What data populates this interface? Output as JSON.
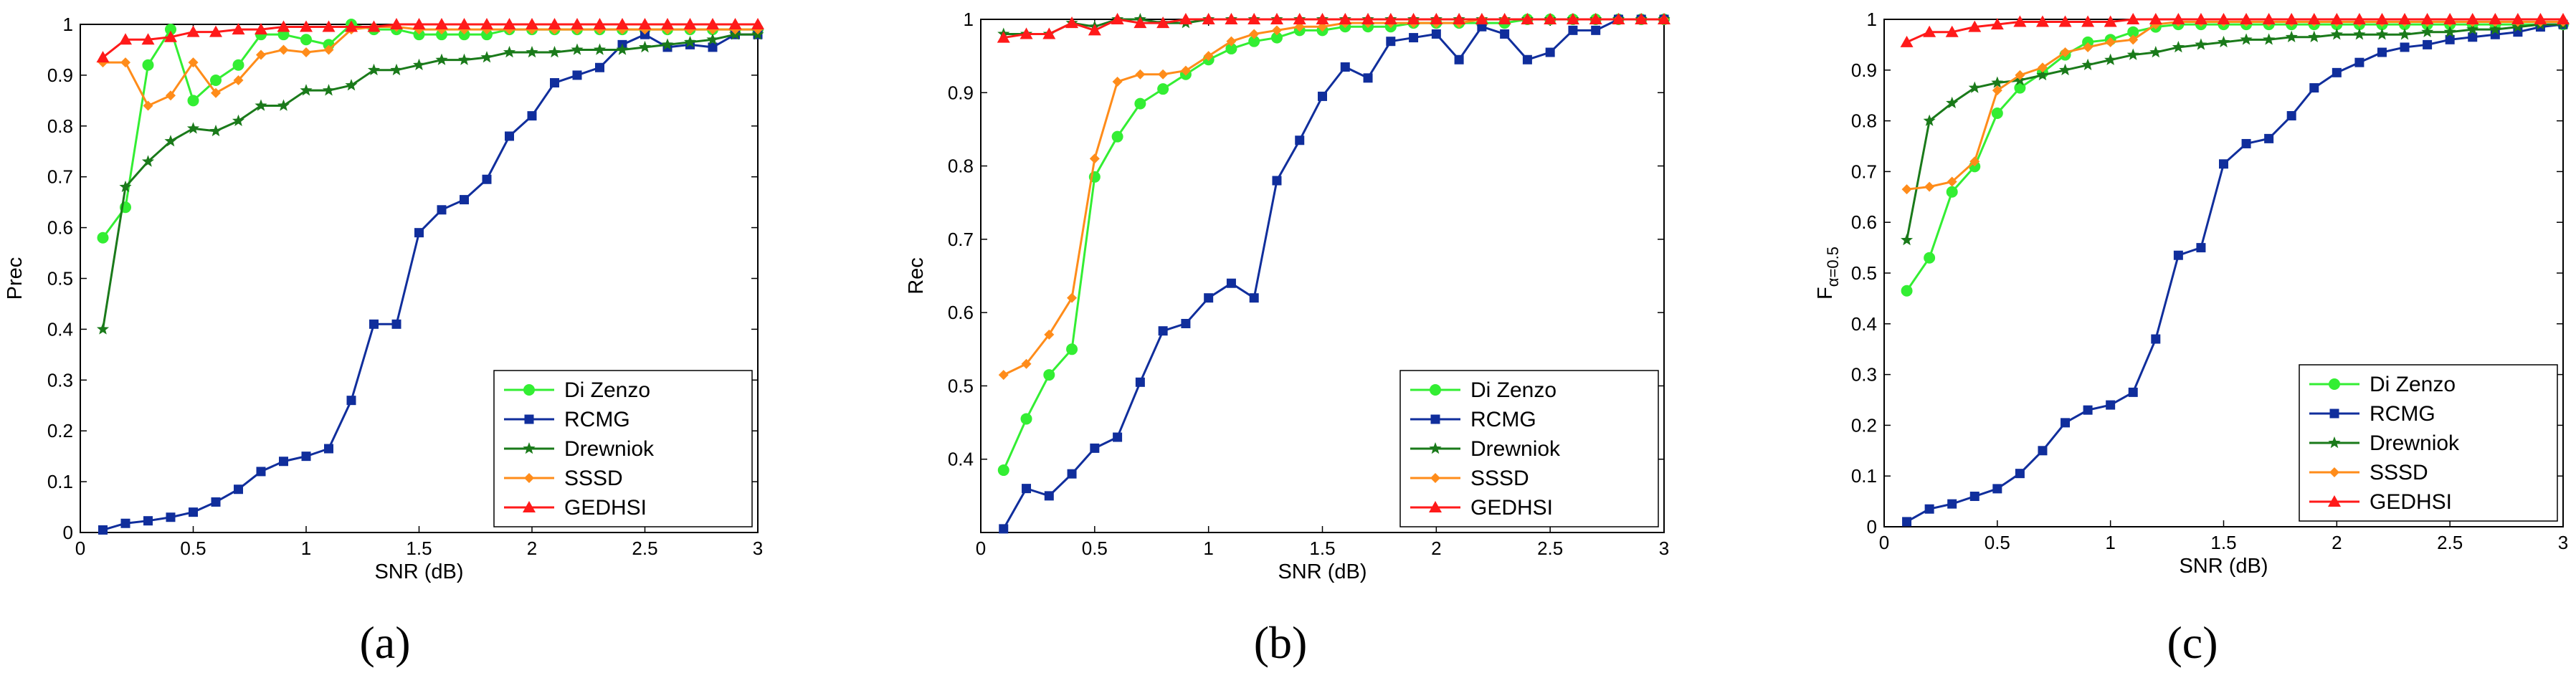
{
  "figure": {
    "panel_labels": [
      "(a)",
      "(b)",
      "(c)"
    ]
  },
  "chart_data": [
    {
      "type": "line",
      "panel": "(a)",
      "xlabel": "SNR (dB)",
      "ylabel": "Prec",
      "ylabel_sub": "",
      "xlim": [
        0,
        3
      ],
      "ylim": [
        0,
        1
      ],
      "xticks": [
        0,
        0.5,
        1,
        1.5,
        2,
        2.5,
        3
      ],
      "xtick_labels": [
        "0",
        "0.5",
        "1",
        "1.5",
        "2",
        "2.5",
        "3"
      ],
      "yticks": [
        0,
        0.1,
        0.2,
        0.3,
        0.4,
        0.5,
        0.6,
        0.7,
        0.8,
        0.9,
        1
      ],
      "ytick_labels": [
        "0",
        "0.1",
        "0.2",
        "0.3",
        "0.4",
        "0.5",
        "0.6",
        "0.7",
        "0.8",
        "0.9",
        "1"
      ],
      "grid": false,
      "legend_loc": "bottom-right",
      "x": [
        0.1,
        0.2,
        0.3,
        0.4,
        0.5,
        0.6,
        0.7,
        0.8,
        0.9,
        1.0,
        1.1,
        1.2,
        1.3,
        1.4,
        1.5,
        1.6,
        1.7,
        1.8,
        1.9,
        2.0,
        2.1,
        2.2,
        2.3,
        2.4,
        2.5,
        2.6,
        2.7,
        2.8,
        2.9,
        3.0
      ],
      "series": [
        {
          "name": "Di Zenzo",
          "color": "#33ee33",
          "marker": "circle",
          "values": [
            0.58,
            0.64,
            0.92,
            0.99,
            0.85,
            0.89,
            0.92,
            0.98,
            0.98,
            0.97,
            0.96,
            1.0,
            0.99,
            0.99,
            0.98,
            0.98,
            0.98,
            0.98,
            0.99,
            0.99,
            0.99,
            0.99,
            0.99,
            0.99,
            0.99,
            0.99,
            0.99,
            0.99,
            0.99,
            0.99
          ]
        },
        {
          "name": "RCMG",
          "color": "#102e9c",
          "marker": "square",
          "values": [
            0.005,
            0.018,
            0.023,
            0.03,
            0.04,
            0.06,
            0.085,
            0.12,
            0.14,
            0.15,
            0.165,
            0.26,
            0.41,
            0.41,
            0.59,
            0.635,
            0.655,
            0.695,
            0.78,
            0.82,
            0.885,
            0.9,
            0.915,
            0.96,
            0.98,
            0.955,
            0.96,
            0.955,
            0.98,
            0.98
          ]
        },
        {
          "name": "Drewniok",
          "color": "#1a7a1a",
          "marker": "star",
          "values": [
            0.4,
            0.68,
            0.73,
            0.77,
            0.795,
            0.79,
            0.81,
            0.84,
            0.84,
            0.87,
            0.87,
            0.88,
            0.91,
            0.91,
            0.92,
            0.93,
            0.93,
            0.935,
            0.945,
            0.945,
            0.945,
            0.95,
            0.95,
            0.95,
            0.955,
            0.96,
            0.965,
            0.97,
            0.98,
            0.98
          ]
        },
        {
          "name": "SSSD",
          "color": "#ff8c1a",
          "marker": "diamond",
          "values": [
            0.925,
            0.925,
            0.84,
            0.86,
            0.925,
            0.865,
            0.89,
            0.94,
            0.95,
            0.945,
            0.95,
            0.99,
            0.995,
            0.995,
            0.99,
            0.99,
            0.99,
            0.99,
            0.99,
            0.99,
            0.99,
            0.99,
            0.99,
            0.99,
            0.99,
            0.99,
            0.99,
            0.99,
            0.99,
            0.99
          ]
        },
        {
          "name": "GEDHSI",
          "color": "#ff1a1a",
          "marker": "triangle",
          "values": [
            0.935,
            0.97,
            0.97,
            0.975,
            0.985,
            0.985,
            0.99,
            0.99,
            0.995,
            0.995,
            0.995,
            0.995,
            0.995,
            1.0,
            1.0,
            1.0,
            1.0,
            1.0,
            1.0,
            1.0,
            1.0,
            1.0,
            1.0,
            1.0,
            1.0,
            1.0,
            1.0,
            1.0,
            1.0,
            1.0
          ]
        }
      ]
    },
    {
      "type": "line",
      "panel": "(b)",
      "xlabel": "SNR (dB)",
      "ylabel": "Rec",
      "ylabel_sub": "",
      "xlim": [
        0,
        3
      ],
      "ylim": [
        0.3,
        1
      ],
      "xticks": [
        0,
        0.5,
        1,
        1.5,
        2,
        2.5,
        3
      ],
      "xtick_labels": [
        "0",
        "0.5",
        "1",
        "1.5",
        "2",
        "2.5",
        "3"
      ],
      "yticks": [
        0.4,
        0.5,
        0.6,
        0.7,
        0.8,
        0.9,
        1
      ],
      "ytick_labels": [
        "0.4",
        "0.5",
        "0.6",
        "0.7",
        "0.8",
        "0.9",
        "1"
      ],
      "grid": false,
      "legend_loc": "bottom-right",
      "x": [
        0.1,
        0.2,
        0.3,
        0.4,
        0.5,
        0.6,
        0.7,
        0.8,
        0.9,
        1.0,
        1.1,
        1.2,
        1.3,
        1.4,
        1.5,
        1.6,
        1.7,
        1.8,
        1.9,
        2.0,
        2.1,
        2.2,
        2.3,
        2.4,
        2.5,
        2.6,
        2.7,
        2.8,
        2.9,
        3.0
      ],
      "series": [
        {
          "name": "Di Zenzo",
          "color": "#33ee33",
          "marker": "circle",
          "values": [
            0.385,
            0.455,
            0.515,
            0.55,
            0.785,
            0.84,
            0.885,
            0.905,
            0.925,
            0.945,
            0.96,
            0.97,
            0.975,
            0.985,
            0.985,
            0.99,
            0.99,
            0.99,
            0.995,
            0.995,
            0.995,
            0.995,
            0.995,
            1.0,
            1.0,
            1.0,
            1.0,
            1.0,
            1.0,
            1.0
          ]
        },
        {
          "name": "RCMG",
          "color": "#102e9c",
          "marker": "square",
          "values": [
            0.305,
            0.36,
            0.35,
            0.38,
            0.415,
            0.43,
            0.505,
            0.575,
            0.585,
            0.62,
            0.64,
            0.62,
            0.78,
            0.835,
            0.895,
            0.935,
            0.92,
            0.97,
            0.975,
            0.98,
            0.945,
            0.99,
            0.98,
            0.945,
            0.955,
            0.985,
            0.985,
            1.0,
            1.0,
            1.0
          ]
        },
        {
          "name": "Drewniok",
          "color": "#1a7a1a",
          "marker": "star",
          "values": [
            0.98,
            0.98,
            0.98,
            0.995,
            0.99,
            1.0,
            1.0,
            0.995,
            0.995,
            1.0,
            1.0,
            1.0,
            1.0,
            1.0,
            1.0,
            1.0,
            1.0,
            1.0,
            1.0,
            1.0,
            1.0,
            1.0,
            1.0,
            1.0,
            1.0,
            1.0,
            1.0,
            1.0,
            1.0,
            1.0
          ]
        },
        {
          "name": "SSSD",
          "color": "#ff8c1a",
          "marker": "diamond",
          "values": [
            0.515,
            0.53,
            0.57,
            0.62,
            0.81,
            0.915,
            0.925,
            0.925,
            0.93,
            0.95,
            0.97,
            0.98,
            0.985,
            0.99,
            0.99,
            0.995,
            0.995,
            0.995,
            0.995,
            0.995,
            0.995,
            1.0,
            1.0,
            1.0,
            1.0,
            1.0,
            1.0,
            1.0,
            1.0,
            1.0
          ]
        },
        {
          "name": "GEDHSI",
          "color": "#ff1a1a",
          "marker": "triangle",
          "values": [
            0.975,
            0.98,
            0.98,
            0.995,
            0.985,
            1.0,
            0.995,
            0.995,
            1.0,
            1.0,
            1.0,
            1.0,
            1.0,
            1.0,
            1.0,
            1.0,
            1.0,
            1.0,
            1.0,
            1.0,
            1.0,
            1.0,
            1.0,
            1.0,
            1.0,
            1.0,
            1.0,
            1.0,
            1.0,
            1.0
          ]
        }
      ]
    },
    {
      "type": "line",
      "panel": "(c)",
      "xlabel": "SNR (dB)",
      "ylabel": "F",
      "ylabel_sub": "α=0.5",
      "xlim": [
        0,
        3
      ],
      "ylim": [
        0,
        1
      ],
      "xticks": [
        0,
        0.5,
        1,
        1.5,
        2,
        2.5,
        3
      ],
      "xtick_labels": [
        "0",
        "0.5",
        "1",
        "1.5",
        "2",
        "2.5",
        "3"
      ],
      "yticks": [
        0,
        0.1,
        0.2,
        0.3,
        0.4,
        0.5,
        0.6,
        0.7,
        0.8,
        0.9,
        1
      ],
      "ytick_labels": [
        "0",
        "0.1",
        "0.2",
        "0.3",
        "0.4",
        "0.5",
        "0.6",
        "0.7",
        "0.8",
        "0.9",
        "1"
      ],
      "grid": false,
      "legend_loc": "bottom-right",
      "x": [
        0.1,
        0.2,
        0.3,
        0.4,
        0.5,
        0.6,
        0.7,
        0.8,
        0.9,
        1.0,
        1.1,
        1.2,
        1.3,
        1.4,
        1.5,
        1.6,
        1.7,
        1.8,
        1.9,
        2.0,
        2.1,
        2.2,
        2.3,
        2.4,
        2.5,
        2.6,
        2.7,
        2.8,
        2.9,
        3.0
      ],
      "series": [
        {
          "name": "Di Zenzo",
          "color": "#33ee33",
          "marker": "circle",
          "values": [
            0.465,
            0.53,
            0.66,
            0.71,
            0.815,
            0.865,
            0.895,
            0.93,
            0.955,
            0.96,
            0.975,
            0.985,
            0.99,
            0.99,
            0.99,
            0.99,
            0.99,
            0.99,
            0.99,
            0.99,
            0.99,
            0.99,
            0.99,
            0.99,
            0.99,
            0.99,
            0.99,
            0.99,
            0.99,
            0.99
          ]
        },
        {
          "name": "RCMG",
          "color": "#102e9c",
          "marker": "square",
          "values": [
            0.01,
            0.035,
            0.045,
            0.06,
            0.075,
            0.105,
            0.15,
            0.205,
            0.23,
            0.24,
            0.265,
            0.37,
            0.535,
            0.55,
            0.715,
            0.755,
            0.765,
            0.81,
            0.865,
            0.895,
            0.915,
            0.935,
            0.945,
            0.95,
            0.96,
            0.965,
            0.97,
            0.975,
            0.985,
            0.99
          ]
        },
        {
          "name": "Drewniok",
          "color": "#1a7a1a",
          "marker": "star",
          "values": [
            0.565,
            0.8,
            0.835,
            0.865,
            0.875,
            0.88,
            0.89,
            0.9,
            0.91,
            0.92,
            0.93,
            0.935,
            0.945,
            0.95,
            0.955,
            0.96,
            0.96,
            0.965,
            0.965,
            0.97,
            0.97,
            0.97,
            0.97,
            0.975,
            0.975,
            0.98,
            0.98,
            0.985,
            0.99,
            0.99
          ]
        },
        {
          "name": "SSSD",
          "color": "#ff8c1a",
          "marker": "diamond",
          "values": [
            0.665,
            0.67,
            0.68,
            0.72,
            0.86,
            0.89,
            0.905,
            0.935,
            0.945,
            0.955,
            0.96,
            0.99,
            0.995,
            0.995,
            0.995,
            0.995,
            0.995,
            0.995,
            0.995,
            0.995,
            0.995,
            0.995,
            0.995,
            0.995,
            0.995,
            0.995,
            0.995,
            0.995,
            0.995,
            0.995
          ]
        },
        {
          "name": "GEDHSI",
          "color": "#ff1a1a",
          "marker": "triangle",
          "values": [
            0.955,
            0.975,
            0.975,
            0.985,
            0.99,
            0.995,
            0.995,
            0.995,
            0.995,
            0.995,
            1.0,
            1.0,
            1.0,
            1.0,
            1.0,
            1.0,
            1.0,
            1.0,
            1.0,
            1.0,
            1.0,
            1.0,
            1.0,
            1.0,
            1.0,
            1.0,
            1.0,
            1.0,
            1.0,
            1.0
          ]
        }
      ]
    }
  ]
}
